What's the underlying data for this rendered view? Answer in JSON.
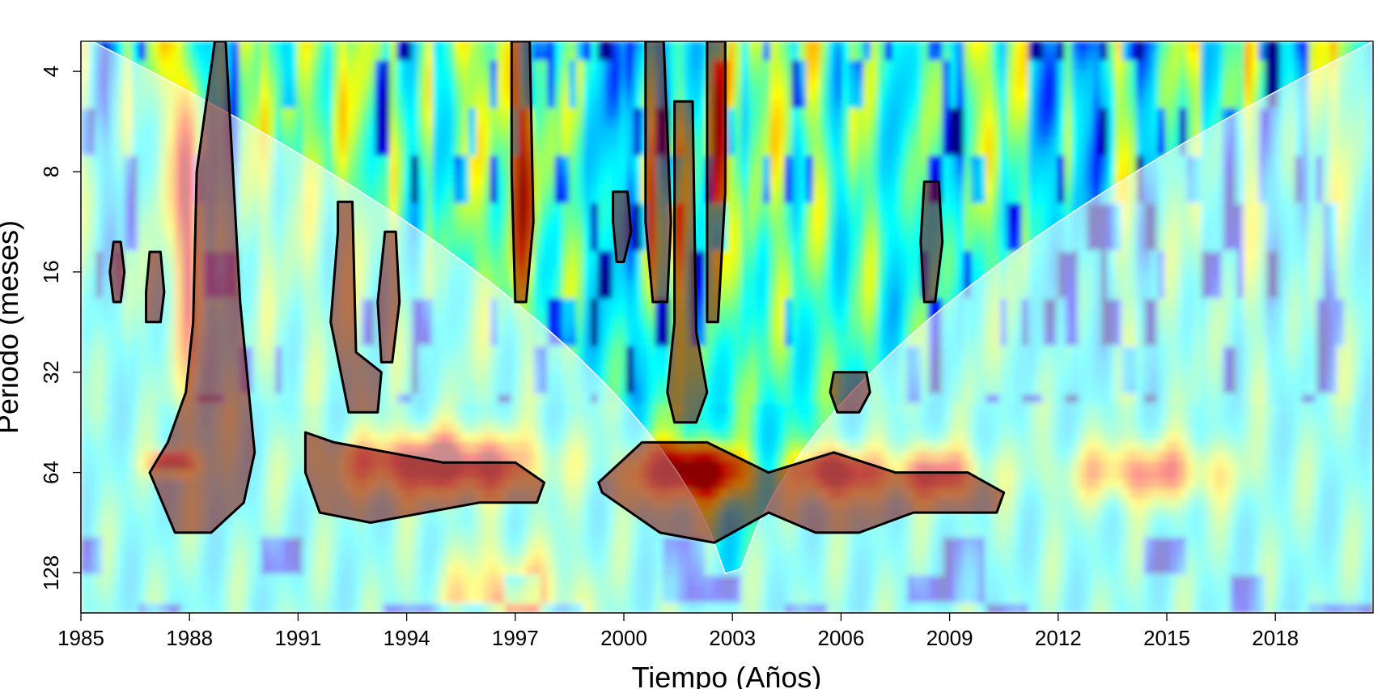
{
  "chart_data": {
    "type": "heatmap",
    "subtype": "wavelet power spectrum",
    "xlabel": "Tiempo (Años)",
    "ylabel": "Periodo (meses)",
    "xlim": [
      1985,
      2020.7
    ],
    "ylim_log2": [
      1.7,
      7.4
    ],
    "x_ticks": [
      1985,
      1988,
      1991,
      1994,
      1997,
      2000,
      2003,
      2006,
      2009,
      2012,
      2015,
      2018
    ],
    "x_tick_labels": [
      "1985",
      "1988",
      "1991",
      "1994",
      "1997",
      "2000",
      "2003",
      "2006",
      "2009",
      "2012",
      "2015",
      "2018"
    ],
    "y_ticks": [
      4,
      8,
      16,
      32,
      64,
      128
    ],
    "y_tick_labels": [
      "4",
      "8",
      "16",
      "32",
      "64",
      "128"
    ],
    "y_scale": "log2",
    "colormap": [
      "#00008b",
      "#0000ff",
      "#00bfff",
      "#00ffff",
      "#7fff7f",
      "#ffff00",
      "#ff8c00",
      "#ff0000",
      "#8b0000"
    ],
    "cone_of_influence": true,
    "significance_contours": [
      {
        "x": [
          1985.9,
          1986.1,
          1986.2,
          1986.1,
          1985.9,
          1985.8
        ],
        "y": [
          4.3,
          4.3,
          4.0,
          3.7,
          3.7,
          4.0
        ]
      },
      {
        "x": [
          1986.8,
          1987.2,
          1987.3,
          1987.2,
          1986.9,
          1986.8
        ],
        "y": [
          4.5,
          4.5,
          4.2,
          3.8,
          3.8,
          4.2
        ]
      },
      {
        "x": [
          1988.7,
          1989.0,
          1989.2,
          1989.4,
          1989.8,
          1989.5,
          1988.6,
          1987.6,
          1986.9,
          1987.4,
          1987.9,
          1988.1,
          1988.2
        ],
        "y": [
          1.7,
          1.7,
          3.0,
          4.3,
          5.8,
          6.3,
          6.6,
          6.6,
          6.0,
          5.7,
          5.2,
          4.5,
          3.0
        ]
      },
      {
        "x": [
          1992.1,
          1992.5,
          1992.6,
          1993.3,
          1993.2,
          1992.4,
          1991.9,
          1992.1
        ],
        "y": [
          3.3,
          3.3,
          4.8,
          5.0,
          5.4,
          5.4,
          4.5,
          3.6
        ]
      },
      {
        "x": [
          1993.4,
          1993.7,
          1993.8,
          1993.6,
          1993.3,
          1993.2
        ],
        "y": [
          3.6,
          3.6,
          4.3,
          4.9,
          4.9,
          4.3
        ]
      },
      {
        "x": [
          1991.2,
          1992.0,
          1995.0,
          1997.0,
          1997.8,
          1997.6,
          1996.0,
          1993.0,
          1991.6,
          1991.2
        ],
        "y": [
          5.6,
          5.7,
          5.9,
          5.9,
          6.1,
          6.3,
          6.3,
          6.5,
          6.4,
          6.0
        ]
      },
      {
        "x": [
          1996.9,
          1997.4,
          1997.5,
          1997.3,
          1997.0,
          1996.9
        ],
        "y": [
          1.7,
          1.7,
          3.5,
          4.3,
          4.3,
          3.0
        ]
      },
      {
        "x": [
          1999.7,
          2000.1,
          2000.2,
          2000.0,
          1999.8,
          1999.7
        ],
        "y": [
          3.2,
          3.2,
          3.6,
          3.9,
          3.9,
          3.5
        ]
      },
      {
        "x": [
          2000.6,
          2001.1,
          2001.3,
          2001.2,
          2000.8,
          2000.6
        ],
        "y": [
          1.7,
          1.7,
          3.5,
          4.3,
          4.3,
          3.5
        ]
      },
      {
        "x": [
          2001.4,
          2001.9,
          2002.0,
          2002.3,
          2002.0,
          2001.4,
          2001.2,
          2001.4
        ],
        "y": [
          2.3,
          2.3,
          4.6,
          5.2,
          5.5,
          5.5,
          5.2,
          4.5
        ]
      },
      {
        "x": [
          2002.3,
          2002.8,
          2002.8,
          2002.6,
          2002.3,
          2002.3
        ],
        "y": [
          1.7,
          1.7,
          3.2,
          4.5,
          4.5,
          3.2
        ]
      },
      {
        "x": [
          2005.8,
          2006.7,
          2006.8,
          2006.5,
          2005.9,
          2005.7
        ],
        "y": [
          5.0,
          5.0,
          5.2,
          5.4,
          5.4,
          5.2
        ]
      },
      {
        "x": [
          2008.3,
          2008.7,
          2008.8,
          2008.6,
          2008.3,
          2008.2
        ],
        "y": [
          3.1,
          3.1,
          3.7,
          4.3,
          4.3,
          3.7
        ]
      },
      {
        "x": [
          1999.3,
          2000.5,
          2002.3,
          2004.0,
          2005.8,
          2007.5,
          2009.5,
          2010.5,
          2010.3,
          2008.0,
          2006.5,
          2005.3,
          2004.0,
          2002.5,
          2001.0,
          1999.4
        ],
        "y": [
          6.1,
          5.7,
          5.7,
          6.0,
          5.8,
          6.0,
          6.0,
          6.2,
          6.4,
          6.4,
          6.6,
          6.6,
          6.4,
          6.7,
          6.6,
          6.2
        ]
      }
    ]
  }
}
